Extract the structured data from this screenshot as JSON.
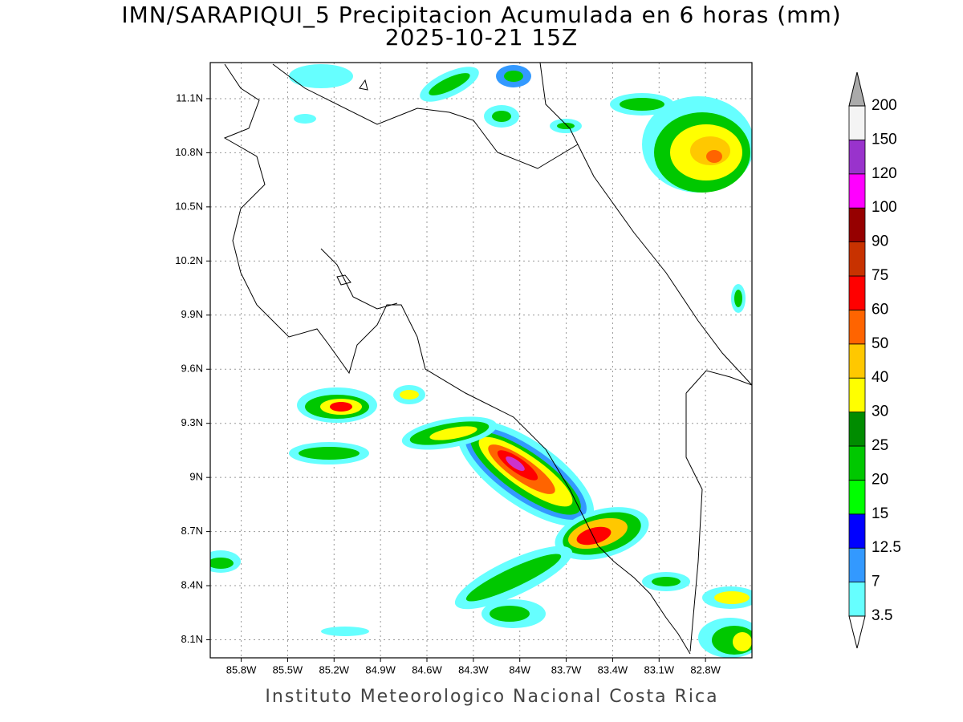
{
  "title": "IMN/SARAPIQUI_5 Precipitacion Acumulada en 6 horas (mm)",
  "subtitle": "2025-10-21 15Z",
  "map": {
    "xlim": [
      -86.0,
      -82.5
    ],
    "ylim": [
      8.0,
      11.3
    ],
    "xticks": [
      {
        "value": -85.8,
        "label": "85.8W"
      },
      {
        "value": -85.5,
        "label": "85.5W"
      },
      {
        "value": -85.2,
        "label": "85.2W"
      },
      {
        "value": -84.9,
        "label": "84.9W"
      },
      {
        "value": -84.6,
        "label": "84.6W"
      },
      {
        "value": -84.3,
        "label": "84.3W"
      },
      {
        "value": -84.0,
        "label": "84W"
      },
      {
        "value": -83.7,
        "label": "83.7W"
      },
      {
        "value": -83.4,
        "label": "83.4W"
      },
      {
        "value": -83.1,
        "label": "83.1W"
      },
      {
        "value": -82.8,
        "label": "82.8W"
      }
    ],
    "yticks": [
      {
        "value": 8.1,
        "label": "8.1N"
      },
      {
        "value": 8.4,
        "label": "8.4N"
      },
      {
        "value": 8.7,
        "label": "8.7N"
      },
      {
        "value": 9.0,
        "label": "9N"
      },
      {
        "value": 9.3,
        "label": "9.3N"
      },
      {
        "value": 9.6,
        "label": "9.6N"
      },
      {
        "value": 9.9,
        "label": "9.9N"
      },
      {
        "value": 10.2,
        "label": "10.2N"
      },
      {
        "value": 10.5,
        "label": "10.5N"
      },
      {
        "value": 10.8,
        "label": "10.8N"
      },
      {
        "value": 11.1,
        "label": "11.1N"
      }
    ],
    "grid": true
  },
  "colorbar": {
    "levels": [
      3.5,
      7,
      12.5,
      15,
      20,
      25,
      30,
      40,
      50,
      60,
      75,
      90,
      100,
      120,
      150,
      200
    ],
    "colors": [
      "#66ffff",
      "#3399ff",
      "#0000ff",
      "#00ff00",
      "#00c800",
      "#008c00",
      "#ffff00",
      "#ffc800",
      "#ff6400",
      "#ff0000",
      "#c83200",
      "#960000",
      "#ff00ff",
      "#9933cc",
      "#f4f4f4"
    ],
    "under_color": "#ffffff",
    "over_color": "#aaaaaa"
  },
  "footer": "Instituto Meteorologico Nacional Costa Rica"
}
